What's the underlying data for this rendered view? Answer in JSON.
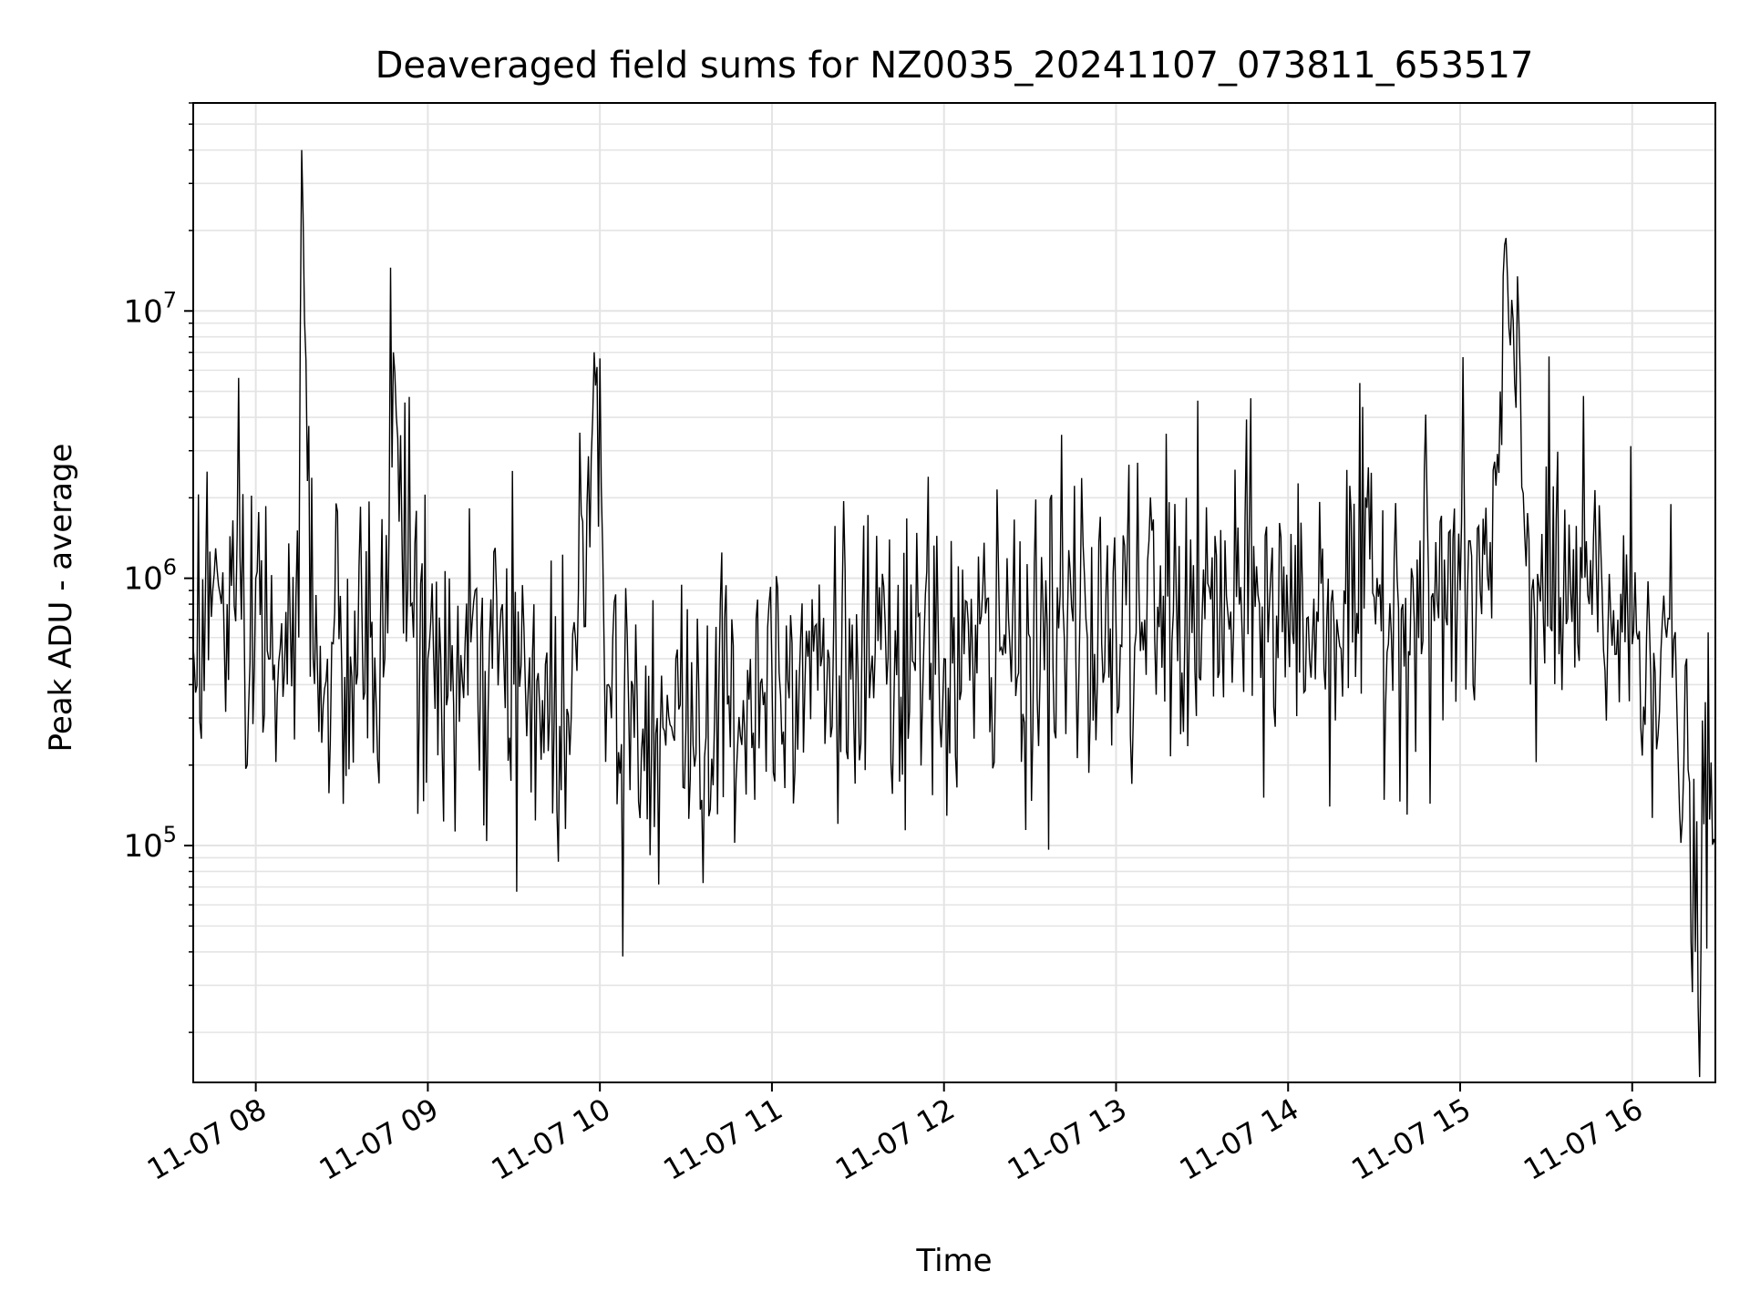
{
  "chart_data": {
    "type": "line",
    "title": "Deaveraged field sums for NZ0035_20241107_073811_653517",
    "xlabel": "Time",
    "ylabel": "Peak ADU - average",
    "yscale": "log",
    "xlim": [
      "2024-11-07 07:38:11",
      "2024-11-07 16:29:00"
    ],
    "ylim": [
      13000,
      60000000
    ],
    "grid": true,
    "x_ticks": [
      "11-07 08",
      "11-07 09",
      "11-07 10",
      "11-07 11",
      "11-07 12",
      "11-07 13",
      "11-07 14",
      "11-07 15",
      "11-07 16"
    ],
    "y_ticks": [
      {
        "base": "10",
        "exp": "5",
        "value": 100000
      },
      {
        "base": "10",
        "exp": "6",
        "value": 1000000
      },
      {
        "base": "10",
        "exp": "7",
        "value": 10000000
      }
    ],
    "series": [
      {
        "color": "#000000",
        "x": [
          "2024-11-07 07:38",
          "2024-11-07 07:45",
          "2024-11-07 07:50",
          "2024-11-07 07:55",
          "2024-11-07 07:57",
          "2024-11-07 08:00",
          "2024-11-07 08:05",
          "2024-11-07 08:10",
          "2024-11-07 08:15",
          "2024-11-07 08:16",
          "2024-11-07 08:20",
          "2024-11-07 08:25",
          "2024-11-07 08:30",
          "2024-11-07 08:35",
          "2024-11-07 08:40",
          "2024-11-07 08:45",
          "2024-11-07 08:48",
          "2024-11-07 08:55",
          "2024-11-07 09:00",
          "2024-11-07 09:10",
          "2024-11-07 09:20",
          "2024-11-07 09:30",
          "2024-11-07 09:40",
          "2024-11-07 09:50",
          "2024-11-07 09:58",
          "2024-11-07 10:03",
          "2024-11-07 10:10",
          "2024-11-07 10:20",
          "2024-11-07 10:30",
          "2024-11-07 10:40",
          "2024-11-07 10:50",
          "2024-11-07 11:00",
          "2024-11-07 11:10",
          "2024-11-07 11:20",
          "2024-11-07 11:30",
          "2024-11-07 11:40",
          "2024-11-07 11:50",
          "2024-11-07 12:00",
          "2024-11-07 12:10",
          "2024-11-07 12:20",
          "2024-11-07 12:30",
          "2024-11-07 12:40",
          "2024-11-07 12:50",
          "2024-11-07 13:00",
          "2024-11-07 13:10",
          "2024-11-07 13:20",
          "2024-11-07 13:30",
          "2024-11-07 13:40",
          "2024-11-07 13:50",
          "2024-11-07 14:00",
          "2024-11-07 14:10",
          "2024-11-07 14:20",
          "2024-11-07 14:30",
          "2024-11-07 14:40",
          "2024-11-07 14:50",
          "2024-11-07 15:00",
          "2024-11-07 15:10",
          "2024-11-07 15:18",
          "2024-11-07 15:25",
          "2024-11-07 15:35",
          "2024-11-07 15:45",
          "2024-11-07 15:55",
          "2024-11-07 16:05",
          "2024-11-07 16:12",
          "2024-11-07 16:18",
          "2024-11-07 16:22",
          "2024-11-07 16:25",
          "2024-11-07 16:29"
        ],
        "y": [
          600000,
          900000,
          800000,
          700000,
          200000,
          1000000,
          500000,
          450000,
          600000,
          40000000,
          500000,
          500000,
          450000,
          400000,
          600000,
          500000,
          7000000,
          600000,
          500000,
          400000,
          450000,
          400000,
          350000,
          300000,
          7000000,
          400000,
          350000,
          300000,
          280000,
          300000,
          350000,
          450000,
          600000,
          500000,
          450000,
          400000,
          450000,
          500000,
          500000,
          550000,
          600000,
          650000,
          600000,
          650000,
          700000,
          750000,
          700000,
          750000,
          800000,
          700000,
          750000,
          800000,
          850000,
          800000,
          850000,
          900000,
          900000,
          11000000,
          900000,
          850000,
          800000,
          700000,
          600000,
          600000,
          200000,
          40000,
          120000,
          100000
        ]
      }
    ]
  }
}
